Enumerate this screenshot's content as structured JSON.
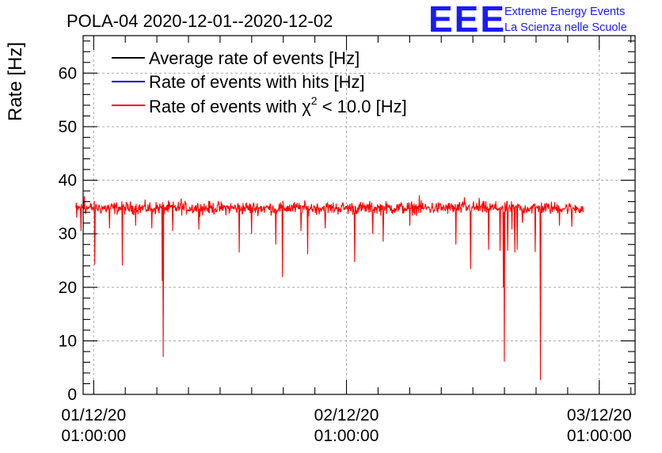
{
  "chart_data": {
    "type": "line",
    "title": "POLA-04 2020-12-01--2020-12-02",
    "ylabel": "Rate [Hz]",
    "xlabel": "",
    "ylim": [
      0,
      67
    ],
    "y_major_ticks": [
      0,
      10,
      20,
      30,
      40,
      50,
      60
    ],
    "y_tick_labels": [
      "0",
      "10",
      "20",
      "30",
      "40",
      "50",
      "60"
    ],
    "xlim_hours": [
      -1.0,
      51.4
    ],
    "x_ticks": [
      {
        "hour": 0,
        "date": "01/12/20",
        "time": "01:00:00"
      },
      {
        "hour": 24,
        "date": "02/12/20",
        "time": "01:00:00"
      },
      {
        "hour": 48,
        "date": "03/12/20",
        "time": "01:00:00"
      }
    ],
    "grid": true,
    "legend_position": "top-left",
    "legend": [
      {
        "label": "Average rate of events [Hz]",
        "color": "#000000"
      },
      {
        "label": "Rate of events with hits [Hz]",
        "color": "#0000cc"
      },
      {
        "label_prefix": "Rate of events with ",
        "label_symbol": "χ",
        "label_sup": "2",
        "label_suffix": " < 10.0 [Hz]",
        "color": "#ff0000"
      }
    ],
    "series": [
      {
        "name": "Rate of events with chi2 < 10.0 [Hz]",
        "color": "#ff0000",
        "x_start_hour": -1.7,
        "x_end_hour": 46.5,
        "baseline": 34.8,
        "noise_amplitude": 1.1,
        "dips": [
          {
            "hour": -1.6,
            "value": 33.0
          },
          {
            "hour": -1.2,
            "value": 30.5
          },
          {
            "hour": 0.1,
            "value": 24.2
          },
          {
            "hour": 1.5,
            "value": 31.0
          },
          {
            "hour": 2.7,
            "value": 24.1
          },
          {
            "hour": 4.0,
            "value": 31.5
          },
          {
            "hour": 5.5,
            "value": 31.0
          },
          {
            "hour": 6.5,
            "value": 21.2
          },
          {
            "hour": 6.6,
            "value": 7.0
          },
          {
            "hour": 7.5,
            "value": 30.5
          },
          {
            "hour": 10.0,
            "value": 30.8
          },
          {
            "hour": 13.8,
            "value": 26.5
          },
          {
            "hour": 15.0,
            "value": 30.0
          },
          {
            "hour": 17.3,
            "value": 28.0
          },
          {
            "hour": 17.9,
            "value": 21.9
          },
          {
            "hour": 19.7,
            "value": 30.5
          },
          {
            "hour": 20.3,
            "value": 26.2
          },
          {
            "hour": 22.0,
            "value": 31.0
          },
          {
            "hour": 24.8,
            "value": 24.7
          },
          {
            "hour": 26.5,
            "value": 30.0
          },
          {
            "hour": 27.5,
            "value": 28.5
          },
          {
            "hour": 30.0,
            "value": 31.5
          },
          {
            "hour": 34.4,
            "value": 28.0
          },
          {
            "hour": 35.8,
            "value": 23.4
          },
          {
            "hour": 37.5,
            "value": 27.0
          },
          {
            "hour": 38.6,
            "value": 26.8
          },
          {
            "hour": 39.3,
            "value": 26.8
          },
          {
            "hour": 39.7,
            "value": 30.8
          },
          {
            "hour": 40.2,
            "value": 27.0
          },
          {
            "hour": 40.7,
            "value": 32.0
          },
          {
            "hour": 38.9,
            "value": 20.0
          },
          {
            "hour": 39.0,
            "value": 6.1
          },
          {
            "hour": 40.0,
            "value": 26.5
          },
          {
            "hour": 41.9,
            "value": 26.6
          },
          {
            "hour": 42.4,
            "value": 2.7
          },
          {
            "hour": 44.2,
            "value": 31.5
          },
          {
            "hour": 45.4,
            "value": 31.3
          }
        ],
        "peaks": [
          {
            "hour": -0.9,
            "value": 37.0
          },
          {
            "hour": 8.3,
            "value": 36.6
          },
          {
            "hour": 30.9,
            "value": 37.2
          },
          {
            "hour": 35.2,
            "value": 36.8
          },
          {
            "hour": 36.6,
            "value": 36.7
          }
        ]
      }
    ]
  },
  "logo": {
    "big": "EEE",
    "line1": "Extreme Energy Events",
    "line2": "La Scienza nelle Scuole",
    "color": "#1a1aff"
  }
}
